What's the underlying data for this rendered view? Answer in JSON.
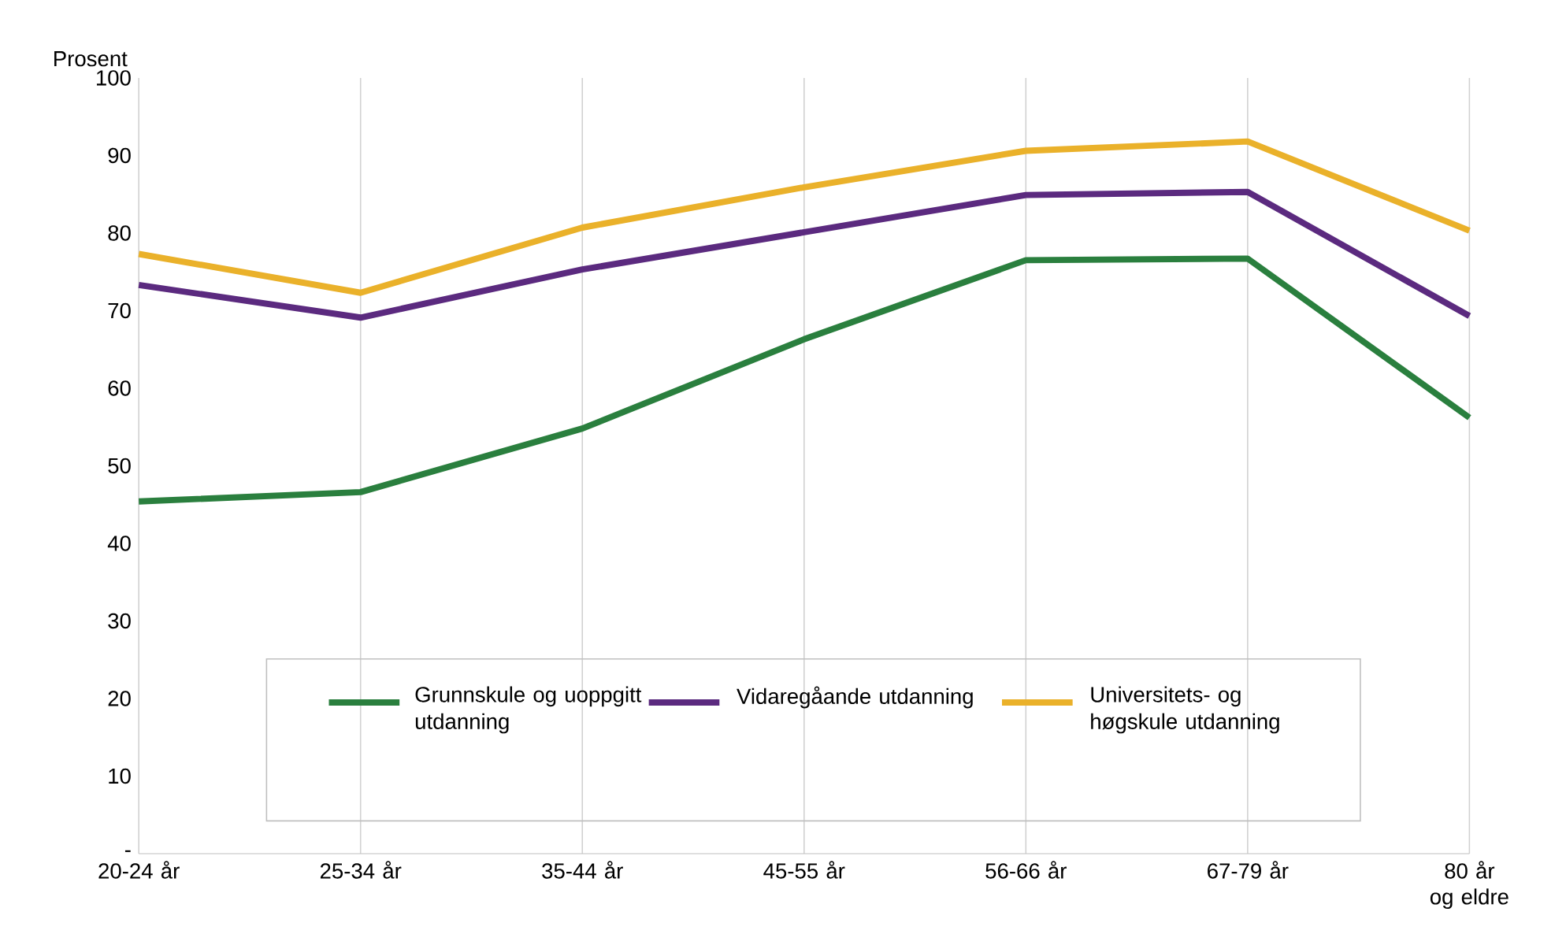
{
  "chart_data": {
    "type": "line",
    "ylabel": "Prosent",
    "categories": [
      "20-24 år",
      "25-34 år",
      "35-44 år",
      "45-55 år",
      "56-66 år",
      "67-79 år",
      "80 år og eldre"
    ],
    "series": [
      {
        "name": "Grunnskule og uoppgitt utdanning",
        "color": "#2a7f3e",
        "values": [
          45.4,
          46.6,
          54.8,
          66.3,
          76.5,
          76.7,
          56.2
        ]
      },
      {
        "name": "Vidaregåande utdanning",
        "color": "#5b2a7f",
        "values": [
          73.3,
          69.1,
          75.3,
          80.1,
          84.9,
          85.3,
          69.3
        ]
      },
      {
        "name": "Universitets- og høgskule utdanning",
        "color": "#eab12a",
        "values": [
          77.3,
          72.3,
          80.7,
          85.9,
          90.6,
          91.8,
          80.3
        ]
      }
    ],
    "ylim": [
      0,
      100
    ],
    "yticks": [
      {
        "value": 0,
        "label": "-"
      },
      10,
      20,
      30,
      40,
      50,
      60,
      70,
      80,
      90,
      100
    ],
    "grid": "x",
    "legend": "bottom",
    "marker": "none",
    "line_style": "solid"
  }
}
